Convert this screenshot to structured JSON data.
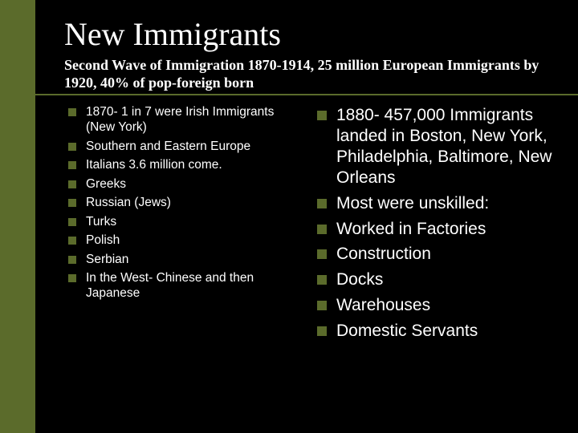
{
  "slide": {
    "title": "New Immigrants",
    "subtitle": "Second Wave of Immigration 1870-1914, 25 million European Immigrants by 1920, 40% of pop-foreign born",
    "left_items": [
      "1870- 1 in 7 were Irish Immigrants (New York)",
      "Southern and Eastern Europe",
      "Italians 3.6 million come.",
      "Greeks",
      "Russian (Jews)",
      "Turks",
      "Polish",
      "Serbian",
      "In the West- Chinese and then Japanese"
    ],
    "right_items": [
      "1880- 457,000 Immigrants landed in Boston, New York, Philadelphia, Baltimore, New Orleans",
      "Most were unskilled:",
      "Worked in Factories",
      "Construction",
      "Docks",
      "Warehouses",
      "Domestic Servants"
    ]
  },
  "colors": {
    "background": "#000000",
    "accent": "#5b6b2b",
    "text": "#ffffff"
  }
}
